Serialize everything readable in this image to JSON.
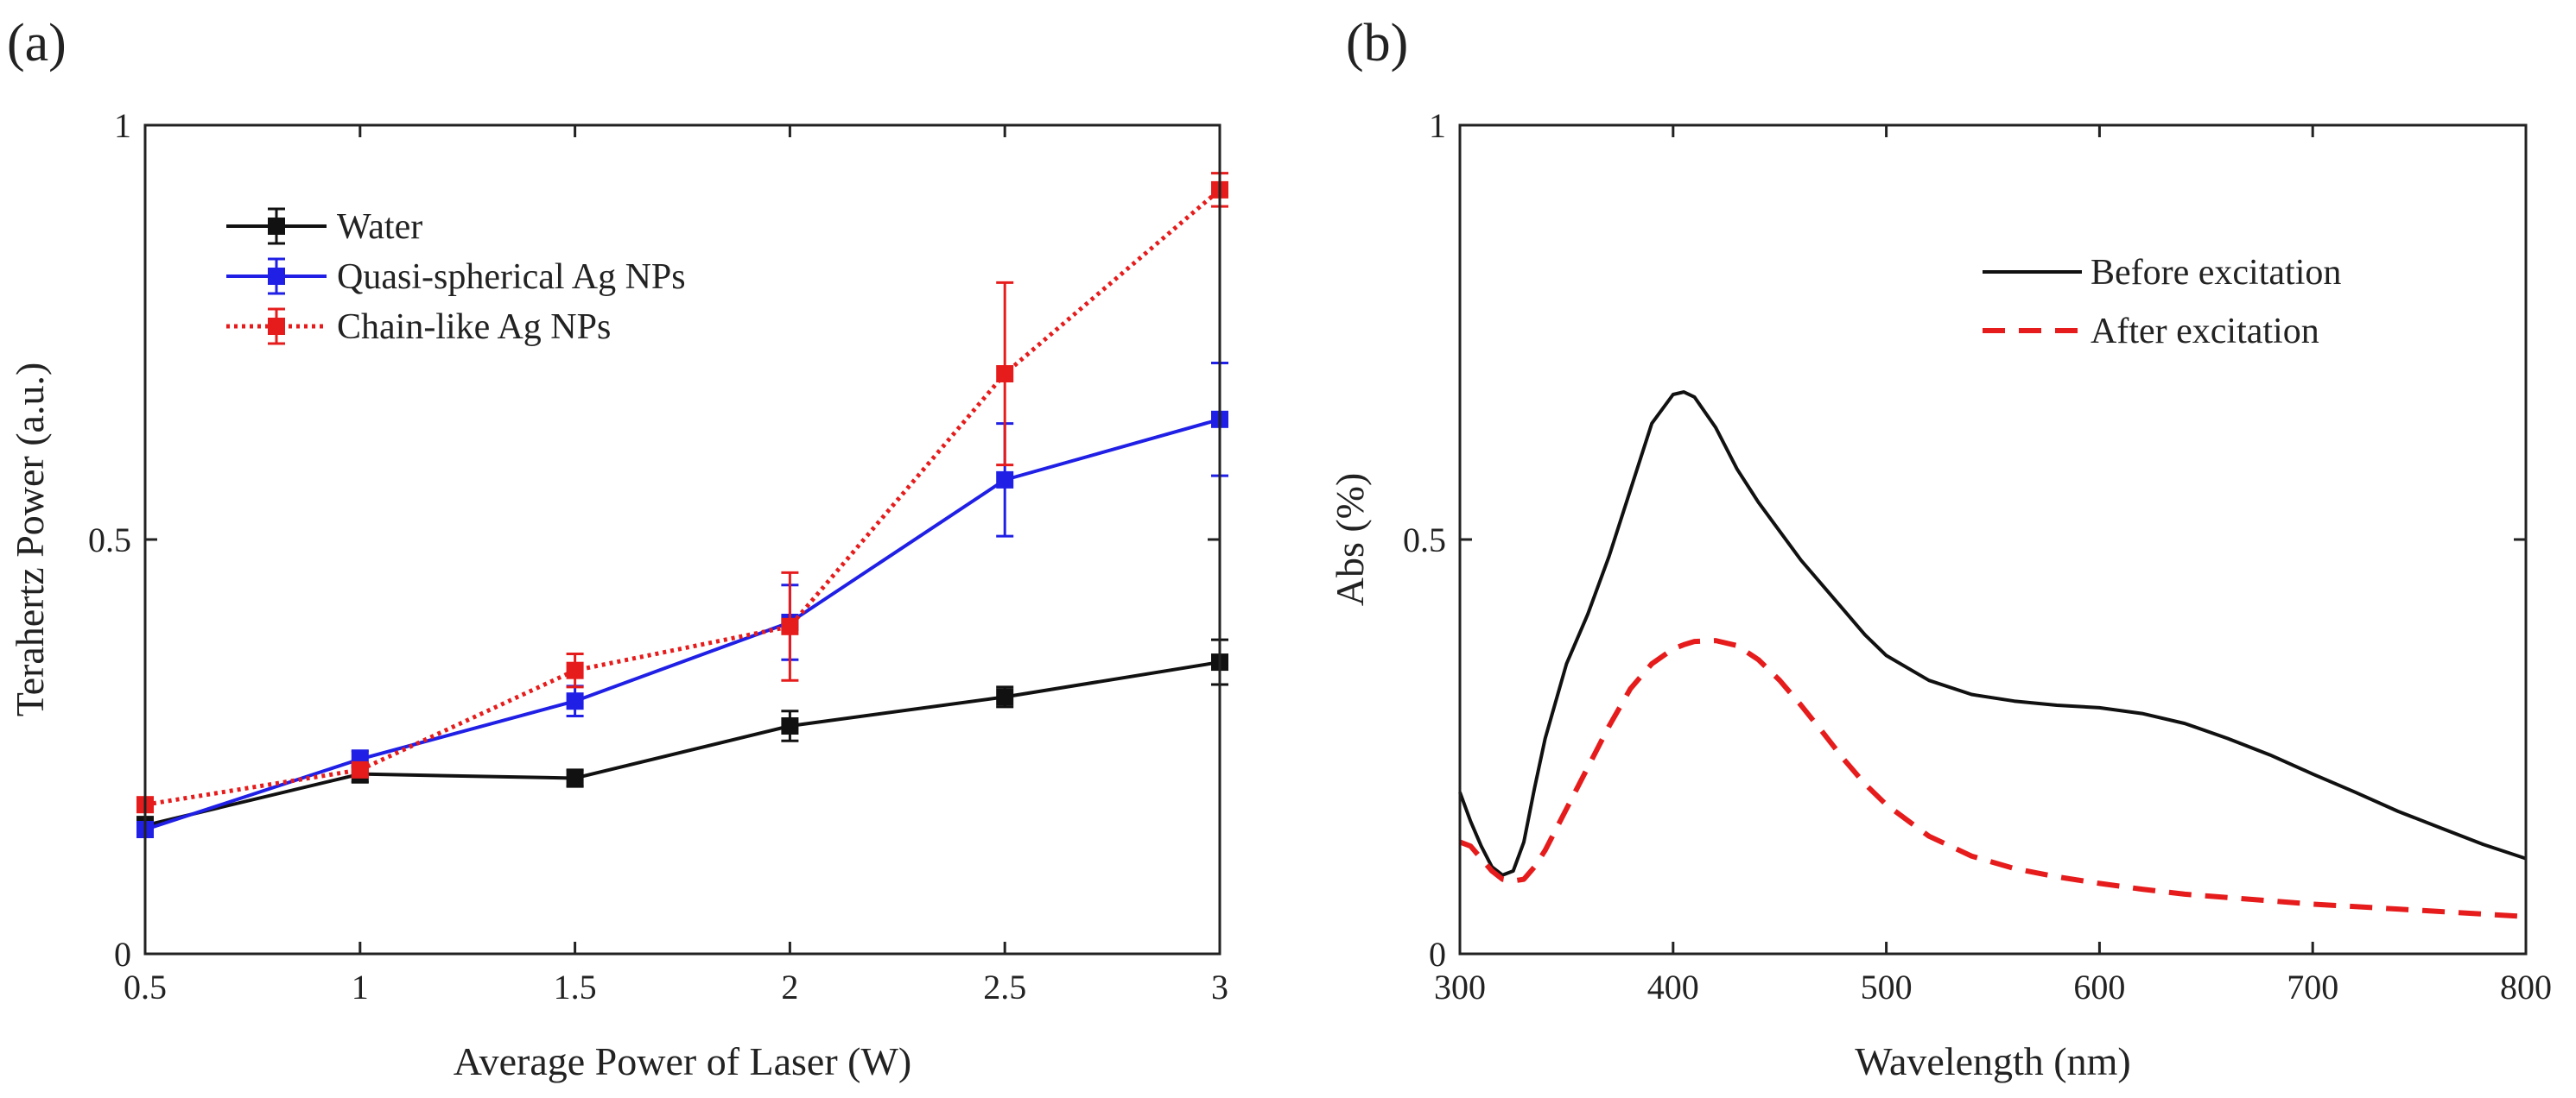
{
  "chart_data": [
    {
      "type": "line",
      "panel_label": "(a)",
      "title": "",
      "xlabel": "Average Power of Laser (W)",
      "ylabel": "Terahertz Power (a.u.)",
      "xlim": [
        0.5,
        3
      ],
      "ylim": [
        0,
        1
      ],
      "x_ticks": [
        "0.5",
        "1",
        "1.5",
        "2",
        "2.5",
        "3"
      ],
      "y_ticks": [
        "0",
        "0.5",
        "1"
      ],
      "grid": false,
      "legend_position": "top-left",
      "x": [
        0.5,
        1,
        1.5,
        2,
        2.5,
        3
      ],
      "series": [
        {
          "name": "Water",
          "color": "#111111",
          "style": "solid",
          "values": [
            0.155,
            0.217,
            0.212,
            0.275,
            0.31,
            0.352
          ],
          "errors": [
            0.01,
            0.01,
            0.01,
            0.018,
            0.012,
            0.027
          ]
        },
        {
          "name": "Quasi-spherical Ag NPs",
          "color": "#1f1fe6",
          "style": "solid",
          "values": [
            0.15,
            0.235,
            0.305,
            0.4,
            0.572,
            0.645
          ],
          "errors": [
            0.008,
            0.01,
            0.018,
            0.045,
            0.068,
            0.068
          ]
        },
        {
          "name": "Chain-like Ag NPs",
          "color": "#e61c1c",
          "style": "dotted",
          "values": [
            0.18,
            0.222,
            0.342,
            0.395,
            0.7,
            0.922
          ],
          "errors": [
            0.008,
            0.008,
            0.02,
            0.065,
            0.11,
            0.02
          ]
        }
      ]
    },
    {
      "type": "line",
      "panel_label": "(b)",
      "title": "",
      "xlabel": "Wavelength (nm)",
      "ylabel": "Abs (%)",
      "xlim": [
        300,
        800
      ],
      "ylim": [
        0,
        1
      ],
      "x_ticks": [
        "300",
        "400",
        "500",
        "600",
        "700",
        "800"
      ],
      "y_ticks": [
        "0",
        "0.5",
        "1"
      ],
      "grid": false,
      "legend_position": "top-right",
      "x": [
        300,
        305,
        310,
        315,
        320,
        325,
        330,
        335,
        340,
        350,
        360,
        370,
        380,
        390,
        400,
        405,
        410,
        420,
        430,
        440,
        450,
        460,
        470,
        480,
        490,
        500,
        520,
        540,
        560,
        580,
        600,
        620,
        640,
        660,
        680,
        700,
        720,
        740,
        760,
        780,
        800
      ],
      "series": [
        {
          "name": "Before excitation",
          "color": "#111111",
          "style": "solid",
          "values": [
            0.195,
            0.16,
            0.13,
            0.105,
            0.095,
            0.1,
            0.135,
            0.2,
            0.26,
            0.35,
            0.41,
            0.48,
            0.56,
            0.64,
            0.675,
            0.678,
            0.672,
            0.635,
            0.585,
            0.545,
            0.51,
            0.475,
            0.445,
            0.415,
            0.385,
            0.36,
            0.33,
            0.313,
            0.305,
            0.3,
            0.297,
            0.29,
            0.278,
            0.26,
            0.24,
            0.217,
            0.195,
            0.172,
            0.152,
            0.132,
            0.115
          ]
        },
        {
          "name": "After excitation",
          "color": "#e61c1c",
          "style": "dashed",
          "values": [
            0.135,
            0.13,
            0.115,
            0.1,
            0.09,
            0.088,
            0.09,
            0.105,
            0.125,
            0.175,
            0.225,
            0.275,
            0.32,
            0.35,
            0.368,
            0.373,
            0.377,
            0.378,
            0.372,
            0.355,
            0.33,
            0.3,
            0.268,
            0.235,
            0.205,
            0.18,
            0.142,
            0.118,
            0.103,
            0.093,
            0.085,
            0.078,
            0.072,
            0.068,
            0.064,
            0.06,
            0.057,
            0.054,
            0.051,
            0.048,
            0.045
          ]
        }
      ]
    }
  ]
}
